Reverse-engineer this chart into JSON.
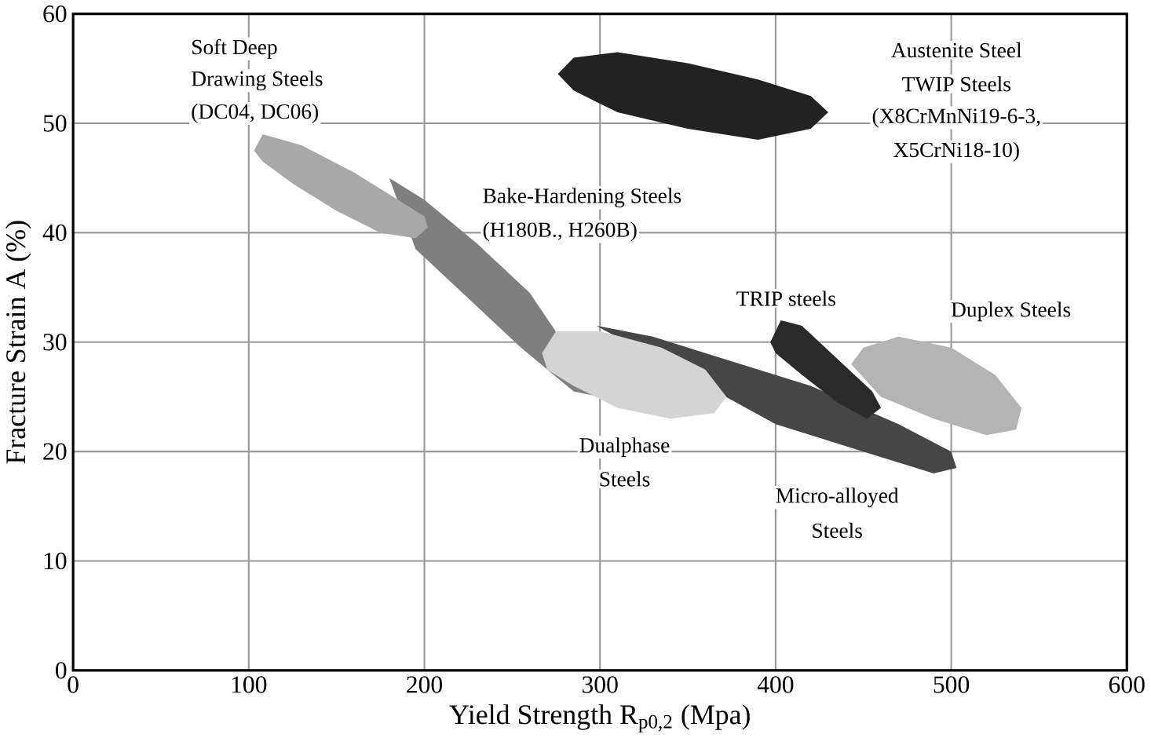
{
  "chart_data": {
    "type": "area",
    "xlabel": "Yield Strength R$_{p0,2}$ (Mpa)",
    "ylabel": "Fracture Strain A (%)",
    "xlim": [
      0,
      600
    ],
    "ylim": [
      0,
      60
    ],
    "xticks": [
      0,
      100,
      200,
      300,
      400,
      500,
      600
    ],
    "yticks": [
      0,
      10,
      20,
      30,
      40,
      50,
      60
    ],
    "grid": true,
    "series": [
      {
        "color": "#464646",
        "x": [
          298,
          330,
          370,
          420,
          470,
          500,
          503,
          490,
          450,
          400
        ],
        "values": [
          31.5,
          30.5,
          28.5,
          26,
          22.5,
          20,
          18.5,
          18,
          20,
          22.5
        ]
      },
      {
        "color": "#b4b4b4",
        "x": [
          443,
          450,
          470,
          500,
          525,
          540,
          537,
          520,
          490,
          460
        ],
        "values": [
          28,
          29.5,
          30.5,
          29.5,
          27,
          24,
          22,
          21.5,
          23,
          25
        ]
      },
      {
        "color": "#2a2a2a",
        "x": [
          397,
          403,
          415,
          435,
          455,
          460,
          452,
          435,
          415,
          400
        ],
        "values": [
          30,
          32,
          31.5,
          28.5,
          25.5,
          24,
          23,
          24.5,
          27,
          29
        ]
      },
      {
        "color": "#7f7f7f",
        "x": [
          180,
          200,
          230,
          260,
          300,
          285,
          255,
          225,
          195
        ],
        "values": [
          45,
          43,
          39,
          34.5,
          25,
          25.5,
          29.5,
          34,
          38.5
        ]
      },
      {
        "color": "#a8a8a8",
        "x": [
          103,
          108,
          130,
          160,
          185,
          200,
          202,
          195,
          175,
          150,
          125,
          108
        ],
        "values": [
          47.5,
          49,
          48,
          45.5,
          43,
          41.5,
          40.5,
          39.5,
          40,
          42,
          44.5,
          46.5
        ]
      },
      {
        "color": "#d4d4d4",
        "x": [
          267,
          275,
          300,
          335,
          360,
          372,
          365,
          340,
          310,
          285,
          270
        ],
        "values": [
          29,
          31,
          31,
          29.5,
          27.5,
          25,
          23.5,
          23,
          24,
          26,
          27.5
        ]
      },
      {
        "color": "#222222",
        "x": [
          276,
          285,
          310,
          350,
          390,
          420,
          430,
          420,
          390,
          350,
          310,
          285
        ],
        "values": [
          54.5,
          56,
          56.5,
          55.5,
          54,
          52.5,
          51,
          49.5,
          48.5,
          49.5,
          51,
          53
        ]
      }
    ],
    "annotations": [
      "Soft Deep",
      "Drawing Steels",
      "(DC04, DC06)",
      "Austenite Steel",
      "TWIP Steels",
      "(X8CrMnNi19-6-3,",
      "X5CrNi18-10)",
      "Bake-Hardening Steels",
      "(H180B., H260B)",
      "TRIP steels",
      "Duplex Steels",
      "Dualphase",
      "Steels",
      "Micro-alloyed",
      "Steels"
    ]
  }
}
